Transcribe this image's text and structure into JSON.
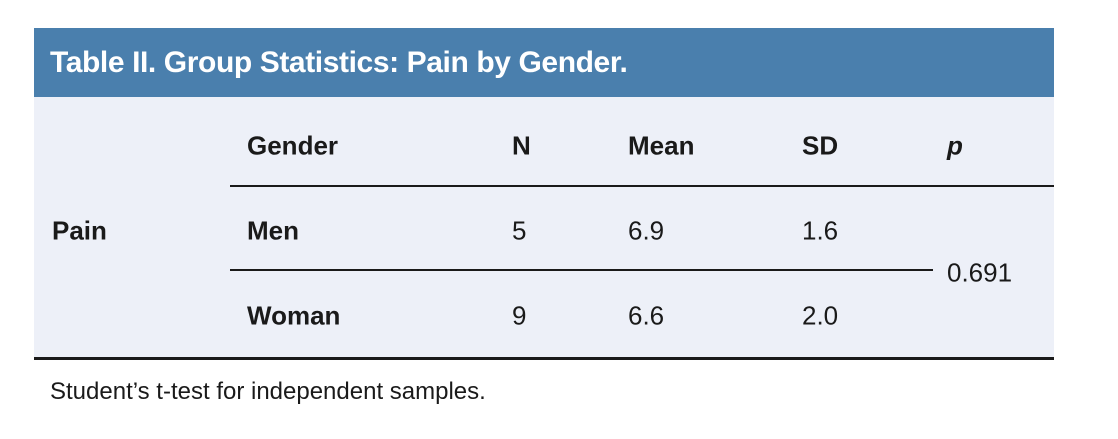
{
  "title": "Table II. Group Statistics: Pain by Gender.",
  "colors": {
    "header_bg": "#4A7FAD",
    "panel_bg": "#EDF0F8",
    "title_text": "#FFFFFF",
    "body_text": "#1A1A1A",
    "rule": "#1A1A1A"
  },
  "table": {
    "row_group_label": "Pain",
    "columns": [
      {
        "key": "gender",
        "label": "Gender"
      },
      {
        "key": "n",
        "label": "N"
      },
      {
        "key": "mean",
        "label": "Mean"
      },
      {
        "key": "sd",
        "label": "SD"
      },
      {
        "key": "p",
        "label": "p"
      }
    ],
    "rows": [
      {
        "gender": "Men",
        "n": "5",
        "mean": "6.9",
        "sd": "1.6"
      },
      {
        "gender": "Woman",
        "n": "9",
        "mean": "6.6",
        "sd": "2.0"
      }
    ],
    "p_value": "0.691"
  },
  "footnote": "Student’s t-test for independent samples."
}
